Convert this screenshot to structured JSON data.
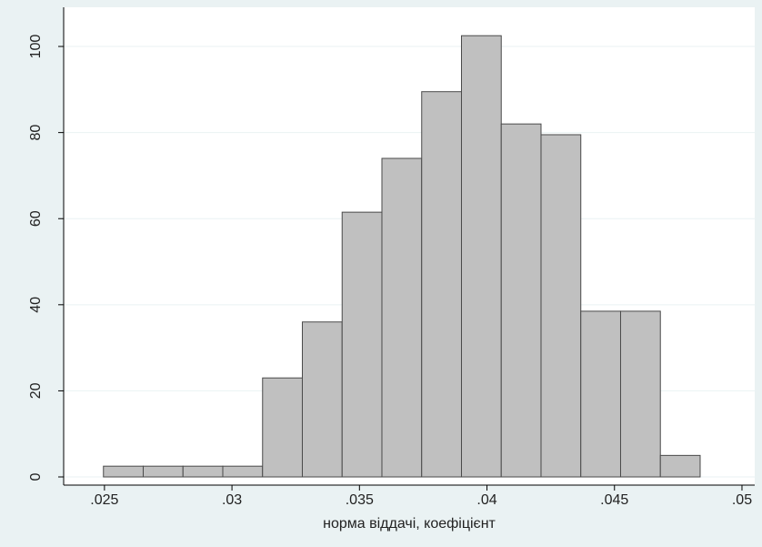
{
  "chart_data": {
    "type": "histogram",
    "x_label": "норма віддачі, коефіцієнт",
    "bins": [
      0.02496,
      0.02652,
      0.02808,
      0.02964,
      0.0312,
      0.03276,
      0.03432,
      0.03588,
      0.03744,
      0.039,
      0.04056,
      0.04212,
      0.04368,
      0.04524,
      0.0468,
      0.04836
    ],
    "values": [
      2.5,
      2.5,
      2.5,
      2.5,
      23,
      36,
      61.5,
      74,
      89.5,
      102.5,
      82,
      79.5,
      38.5,
      38.5,
      5
    ],
    "color": "#c0c0c0",
    "xlim": [
      0.0234,
      0.0505
    ],
    "ylim": [
      -1.9,
      109.1
    ],
    "xticks": [
      {
        "value": 0.025,
        "label": ".025"
      },
      {
        "value": 0.03,
        "label": ".03"
      },
      {
        "value": 0.035,
        "label": ".035"
      },
      {
        "value": 0.04,
        "label": ".04"
      },
      {
        "value": 0.045,
        "label": ".045"
      },
      {
        "value": 0.05,
        "label": ".05"
      }
    ],
    "yticks": [
      0,
      20,
      40,
      60,
      80,
      100
    ],
    "grid": true
  }
}
